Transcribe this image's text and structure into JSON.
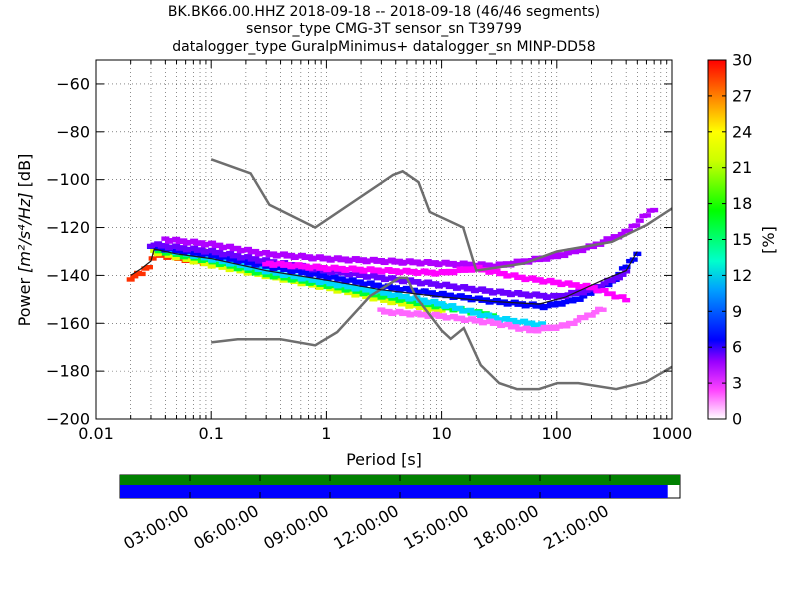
{
  "chart_data": {
    "type": "heatmap",
    "title": [
      "BK.BK66.00.HHZ   2018-09-18 -- 2018-09-18  (46/46 segments)",
      "sensor_type CMG-3T sensor_sn T39799",
      "datalogger_type GuralpMinimus+ datalogger_sn MINP-DD58"
    ],
    "xlabel": "Period [s]",
    "ylabel_prefix": "Power ",
    "ylabel_math": "[m²/s⁴/Hz]",
    "ylabel_suffix": " [dB]",
    "x_scale": "log",
    "xlim": [
      0.01,
      1000
    ],
    "ylim": [
      -200,
      -50
    ],
    "x_ticks": [
      {
        "value": 0.01,
        "label": "0.01"
      },
      {
        "value": 0.1,
        "label": "0.1"
      },
      {
        "value": 1,
        "label": "1"
      },
      {
        "value": 10,
        "label": "10"
      },
      {
        "value": 100,
        "label": "100"
      },
      {
        "value": 1000,
        "label": "1000"
      }
    ],
    "y_ticks": [
      {
        "value": -60,
        "label": "−60"
      },
      {
        "value": -80,
        "label": "−80"
      },
      {
        "value": -100,
        "label": "−100"
      },
      {
        "value": -120,
        "label": "−120"
      },
      {
        "value": -140,
        "label": "−140"
      },
      {
        "value": -160,
        "label": "−160"
      },
      {
        "value": -180,
        "label": "−180"
      },
      {
        "value": -200,
        "label": "−200"
      }
    ],
    "colorbar": {
      "label": "[%]",
      "range": [
        0,
        30
      ],
      "ticks": [
        "0",
        "3",
        "6",
        "9",
        "12",
        "15",
        "18",
        "21",
        "24",
        "27",
        "30"
      ]
    },
    "noise_models": {
      "color": "#6e6e6e",
      "nhnm": [
        [
          0.1,
          -91.5
        ],
        [
          0.22,
          -97.4
        ],
        [
          0.32,
          -110.5
        ],
        [
          0.8,
          -120
        ],
        [
          3.8,
          -98
        ],
        [
          4.6,
          -96.5
        ],
        [
          6.3,
          -101
        ],
        [
          7.9,
          -113.5
        ],
        [
          15.4,
          -120
        ],
        [
          20,
          -138
        ],
        [
          52,
          -135
        ],
        [
          100,
          -130
        ],
        [
          300,
          -126
        ],
        [
          600,
          -119
        ],
        [
          1000,
          -112
        ]
      ],
      "nlnm": [
        [
          0.1,
          -168
        ],
        [
          0.17,
          -166.7
        ],
        [
          0.4,
          -166.7
        ],
        [
          0.8,
          -169.2
        ],
        [
          1.24,
          -163.7
        ],
        [
          2.4,
          -148.6
        ],
        [
          4.3,
          -141
        ],
        [
          5,
          -141.1
        ],
        [
          6,
          -149
        ],
        [
          10,
          -163
        ],
        [
          12,
          -166.5
        ],
        [
          15.6,
          -162
        ],
        [
          21.9,
          -177.5
        ],
        [
          31.6,
          -185
        ],
        [
          45,
          -187.5
        ],
        [
          70,
          -187.5
        ],
        [
          101,
          -185
        ],
        [
          154,
          -185
        ],
        [
          328,
          -187.5
        ],
        [
          600,
          -184.4
        ],
        [
          1000,
          -178.2
        ]
      ]
    },
    "median": {
      "color": "#1a1a1a",
      "points": [
        [
          0.02,
          -140
        ],
        [
          0.025,
          -137
        ],
        [
          0.03,
          -134
        ],
        [
          0.032,
          -129
        ],
        [
          0.05,
          -131
        ],
        [
          0.1,
          -133
        ],
        [
          0.3,
          -138
        ],
        [
          1,
          -142
        ],
        [
          3,
          -146
        ],
        [
          10,
          -149
        ],
        [
          30,
          -151
        ],
        [
          70,
          -152
        ],
        [
          120,
          -149
        ],
        [
          250,
          -142
        ],
        [
          400,
          -138
        ],
        [
          500,
          -130
        ]
      ]
    },
    "bands": [
      {
        "color": "#ff3000",
        "points": [
          [
            0.02,
            -141
          ],
          [
            0.025,
            -139
          ],
          [
            0.03,
            -135
          ],
          [
            0.032,
            -131
          ],
          [
            0.1,
            -135
          ]
        ]
      },
      {
        "color": "#dfff00",
        "points": [
          [
            0.032,
            -130
          ],
          [
            0.1,
            -135.5
          ],
          [
            0.3,
            -140
          ],
          [
            1,
            -145
          ],
          [
            3,
            -150
          ],
          [
            10,
            -155
          ]
        ]
      },
      {
        "color": "#00ff30",
        "points": [
          [
            0.035,
            -129.5
          ],
          [
            0.1,
            -134
          ],
          [
            0.3,
            -139.5
          ],
          [
            1,
            -144
          ],
          [
            3,
            -148.5
          ],
          [
            10,
            -153
          ],
          [
            30,
            -157
          ]
        ]
      },
      {
        "color": "#00d8ff",
        "points": [
          [
            0.04,
            -129
          ],
          [
            0.1,
            -133
          ],
          [
            0.3,
            -138
          ],
          [
            1,
            -143
          ],
          [
            3,
            -147
          ],
          [
            10,
            -152
          ],
          [
            30,
            -158
          ],
          [
            80,
            -161
          ]
        ]
      },
      {
        "color": "#0000ff",
        "points": [
          [
            0.03,
            -128
          ],
          [
            0.1,
            -131.5
          ],
          [
            0.3,
            -136
          ],
          [
            1,
            -140.5
          ],
          [
            3,
            -144.5
          ],
          [
            10,
            -148
          ],
          [
            30,
            -151
          ],
          [
            80,
            -153
          ],
          [
            150,
            -150
          ],
          [
            300,
            -143
          ],
          [
            500,
            -131
          ]
        ]
      },
      {
        "color": "#6a00ff",
        "points": [
          [
            0.03,
            -127
          ],
          [
            0.1,
            -130
          ],
          [
            0.3,
            -134
          ],
          [
            1,
            -138
          ],
          [
            3,
            -141
          ],
          [
            10,
            -144
          ],
          [
            30,
            -147
          ],
          [
            100,
            -149
          ],
          [
            200,
            -146
          ],
          [
            400,
            -139
          ]
        ]
      },
      {
        "color": "#b000ff",
        "points": [
          [
            0.04,
            -125
          ],
          [
            0.1,
            -127
          ],
          [
            0.3,
            -131
          ],
          [
            1,
            -133
          ],
          [
            3,
            -134
          ],
          [
            10,
            -135
          ],
          [
            30,
            -136
          ],
          [
            100,
            -132
          ],
          [
            200,
            -128
          ],
          [
            400,
            -122
          ],
          [
            700,
            -112
          ]
        ]
      },
      {
        "color": "#ff00ff",
        "points": [
          [
            0.3,
            -135
          ],
          [
            1,
            -137
          ],
          [
            3,
            -138
          ],
          [
            10,
            -139
          ],
          [
            20,
            -137
          ],
          [
            50,
            -141
          ],
          [
            100,
            -143
          ],
          [
            200,
            -145
          ],
          [
            400,
            -150
          ]
        ]
      },
      {
        "color": "#ff66ff",
        "points": [
          [
            3,
            -155
          ],
          [
            10,
            -157
          ],
          [
            30,
            -160
          ],
          [
            60,
            -163
          ],
          [
            120,
            -161
          ],
          [
            250,
            -154
          ]
        ]
      }
    ],
    "timeline": {
      "ticks": [
        "03:00:00",
        "06:00:00",
        "09:00:00",
        "12:00:00",
        "15:00:00",
        "18:00:00",
        "21:00:00"
      ],
      "data_bar_color": "#008000",
      "coverage_bar_color": "#0000ff",
      "coverage_fraction": 0.978
    }
  }
}
